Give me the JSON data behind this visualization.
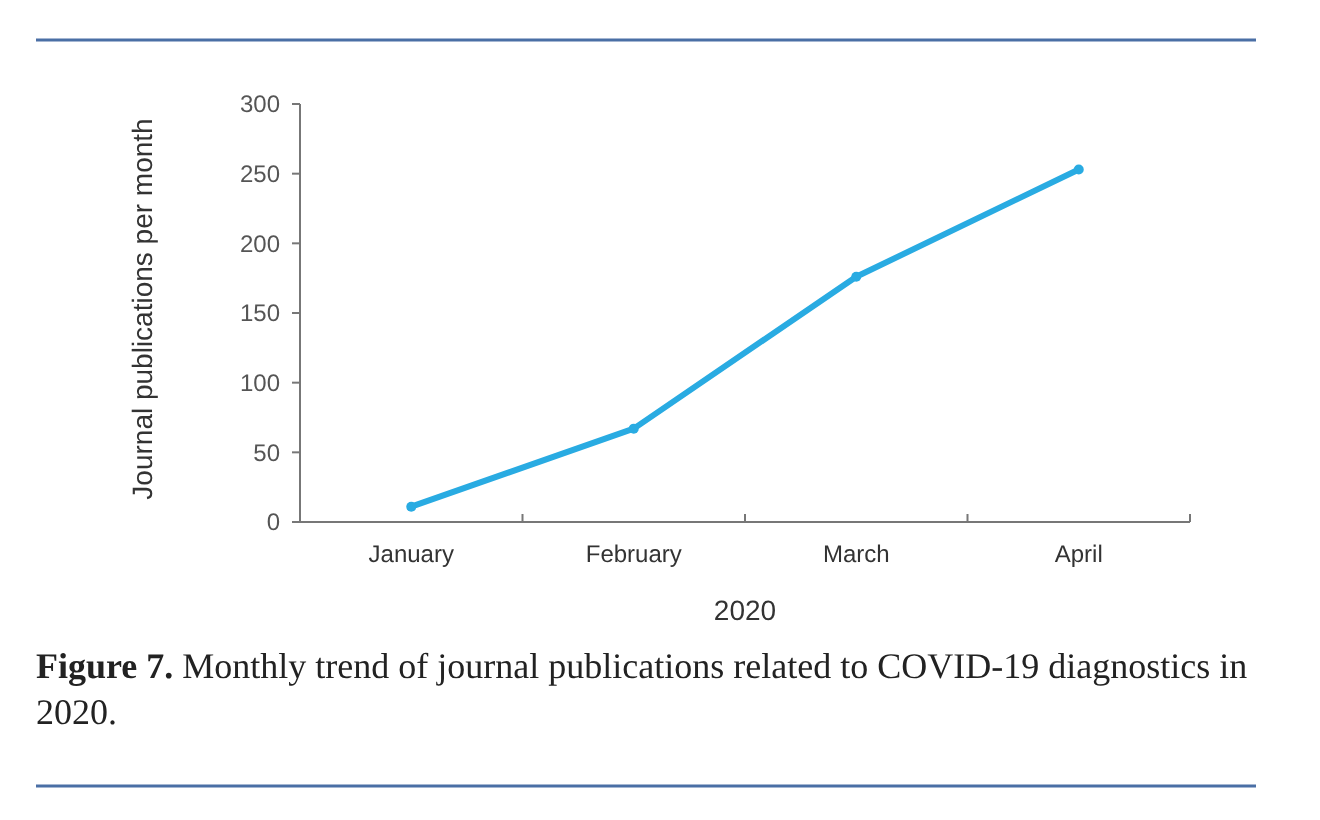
{
  "chart_data": {
    "type": "line",
    "categories": [
      "January",
      "February",
      "March",
      "April"
    ],
    "series": [
      {
        "color": "#29abe2",
        "values": [
          11,
          67,
          176,
          253
        ]
      }
    ],
    "xlabel": "2020",
    "ylabel": "Journal publications per month",
    "ylim": [
      0,
      300
    ],
    "yticks": [
      0,
      50,
      100,
      150,
      200,
      250,
      300
    ],
    "grid": false,
    "marker": "circle",
    "line_style": "solid",
    "annotations": [
      "Figure 7. Monthly trend of journal publications related to COVID-19 diagnostics in 2020."
    ]
  }
}
